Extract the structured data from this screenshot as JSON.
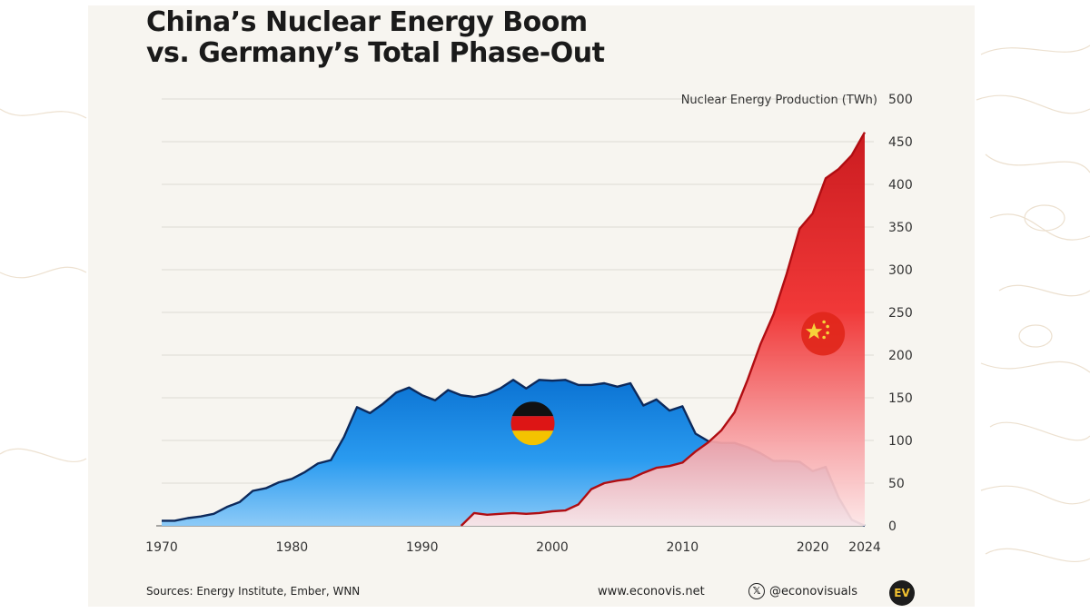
{
  "title_line1": "China’s Nuclear Energy Boom",
  "title_line2": "vs. Germany’s Total Phase-Out",
  "footer": {
    "sources": "Sources: Energy Institute, Ember, WNN",
    "website": "www.econovis.net",
    "handle": "@econovisuals",
    "x_icon": "x-logo-icon",
    "logo_text": "EV"
  },
  "colors": {
    "germany_fill": "#1f8fe8",
    "germany_line": "#0d2a5c",
    "china_fill": "#e0141a",
    "china_line": "#b00d12",
    "background": "#f7f5f0"
  },
  "chart_data": {
    "type": "area",
    "ylabel": "Nuclear Energy Production (TWh)",
    "xlim": [
      1970,
      2024
    ],
    "ylim": [
      0,
      500
    ],
    "yticks": [
      0,
      50,
      100,
      150,
      200,
      250,
      300,
      350,
      400,
      450,
      500
    ],
    "xticks": [
      1970,
      1980,
      1990,
      2000,
      2010,
      2020,
      2024
    ],
    "grid": "horizontal",
    "series": [
      {
        "flag": "germany-flag-icon",
        "x": [
          1970,
          1971,
          1972,
          1973,
          1974,
          1975,
          1976,
          1977,
          1978,
          1979,
          1980,
          1981,
          1982,
          1983,
          1984,
          1985,
          1986,
          1987,
          1988,
          1989,
          1990,
          1991,
          1992,
          1993,
          1994,
          1995,
          1996,
          1997,
          1998,
          1999,
          2000,
          2001,
          2002,
          2003,
          2004,
          2005,
          2006,
          2007,
          2008,
          2009,
          2010,
          2011,
          2012,
          2013,
          2014,
          2015,
          2016,
          2017,
          2018,
          2019,
          2020,
          2021,
          2022,
          2023,
          2024
        ],
        "values": [
          6,
          6,
          9,
          11,
          14,
          22,
          28,
          41,
          44,
          51,
          55,
          63,
          73,
          77,
          104,
          139,
          132,
          143,
          156,
          162,
          153,
          147,
          159,
          153,
          151,
          154,
          161,
          171,
          161,
          171,
          170,
          171,
          165,
          165,
          167,
          163,
          167,
          141,
          148,
          135,
          140,
          108,
          99,
          97,
          97,
          92,
          85,
          76,
          76,
          75,
          64,
          69,
          33,
          7,
          0
        ]
      },
      {
        "flag": "china-flag-icon",
        "x": [
          1993,
          1994,
          1995,
          1996,
          1997,
          1998,
          1999,
          2000,
          2001,
          2002,
          2003,
          2004,
          2005,
          2006,
          2007,
          2008,
          2009,
          2010,
          2011,
          2012,
          2013,
          2014,
          2015,
          2016,
          2017,
          2018,
          2019,
          2020,
          2021,
          2022,
          2023,
          2024
        ],
        "values": [
          0,
          15,
          13,
          14,
          15,
          14,
          15,
          17,
          18,
          25,
          43,
          50,
          53,
          55,
          62,
          68,
          70,
          74,
          87,
          98,
          112,
          133,
          171,
          213,
          248,
          295,
          348,
          366,
          407,
          418,
          434,
          461
        ]
      }
    ]
  }
}
